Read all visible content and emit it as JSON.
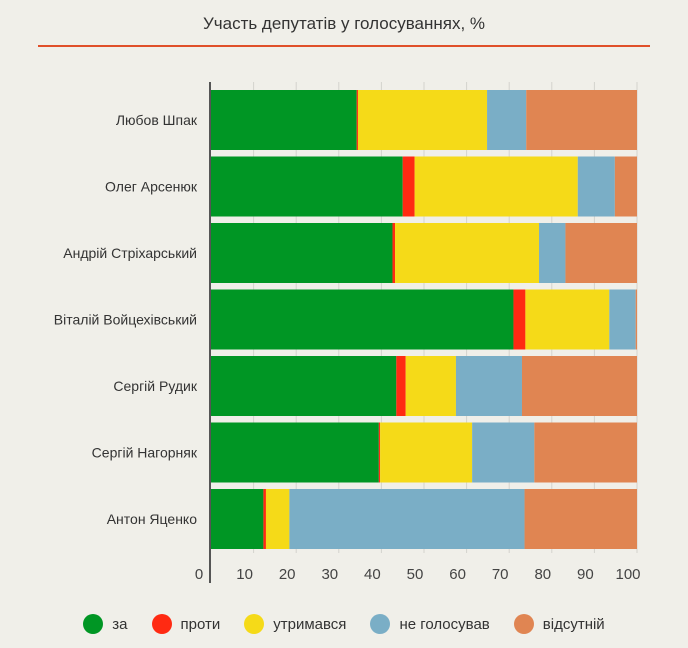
{
  "chart_data": {
    "type": "bar",
    "orientation": "horizontal",
    "stacked": true,
    "title": "Участь депутатів у голосуваннях, %",
    "categories": [
      "Любов Шпак",
      "Олег Арсенюк",
      "Андрій Стріхарський",
      "Віталій Войцехівський",
      "Сергій Рудик",
      "Сергій Нагорняк",
      "Антон Яценко"
    ],
    "series": [
      {
        "name": "за",
        "color": "#009624",
        "values": [
          34.2,
          45.0,
          42.6,
          71.0,
          43.5,
          39.4,
          12.3
        ]
      },
      {
        "name": "проти",
        "color": "#ff2a12",
        "values": [
          0.3,
          2.8,
          0.6,
          2.8,
          2.2,
          0.3,
          0.6
        ]
      },
      {
        "name": "утримався",
        "color": "#f5da18",
        "values": [
          30.3,
          38.3,
          33.8,
          19.7,
          11.8,
          21.6,
          5.5
        ]
      },
      {
        "name": "не голосував",
        "color": "#7aaec6",
        "values": [
          9.2,
          8.7,
          6.2,
          6.2,
          15.5,
          14.6,
          55.2
        ]
      },
      {
        "name": "відсутній",
        "color": "#e08552",
        "values": [
          26.0,
          5.2,
          16.8,
          0.3,
          27.0,
          24.1,
          26.4
        ]
      }
    ],
    "xlim": [
      0,
      100
    ],
    "xticks": [
      0,
      10,
      20,
      30,
      40,
      50,
      60,
      70,
      80,
      90,
      100
    ],
    "grid": true,
    "legend_position": "bottom"
  }
}
